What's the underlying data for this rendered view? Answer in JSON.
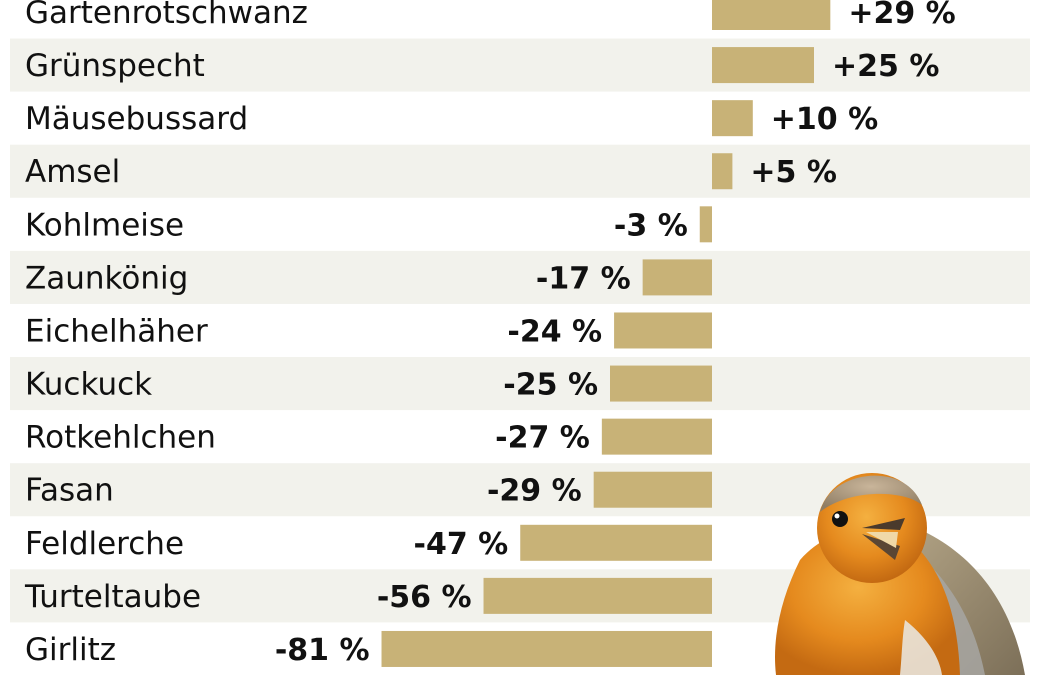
{
  "colors": {
    "bar": "#c8b277",
    "stripe": "#f2f2ec",
    "background": "#ffffff",
    "text": "#111111"
  },
  "chart_data": {
    "type": "bar",
    "orientation": "horizontal",
    "categories": [
      "Gartenrotschwanz",
      "Grünspecht",
      "Mäusebussard",
      "Amsel",
      "Kohlmeise",
      "Zaunkönig",
      "Eichelhäher",
      "Kuckuck",
      "Rotkehlchen",
      "Fasan",
      "Feldlerche",
      "Turteltaube",
      "Girlitz"
    ],
    "values": [
      29,
      25,
      10,
      5,
      -3,
      -17,
      -24,
      -25,
      -27,
      -29,
      -47,
      -56,
      -81
    ],
    "value_labels": [
      "+29 %",
      "+25 %",
      "+10 %",
      "+5 %",
      "-3 %",
      "-17 %",
      "-24 %",
      "-25 %",
      "-27 %",
      "-29 %",
      "-47 %",
      "-56 %",
      "-81 %"
    ],
    "title": "",
    "xlabel": "",
    "ylabel": "",
    "unit": "%",
    "grid": false,
    "legend": "none",
    "decoration": "robin-photo"
  }
}
